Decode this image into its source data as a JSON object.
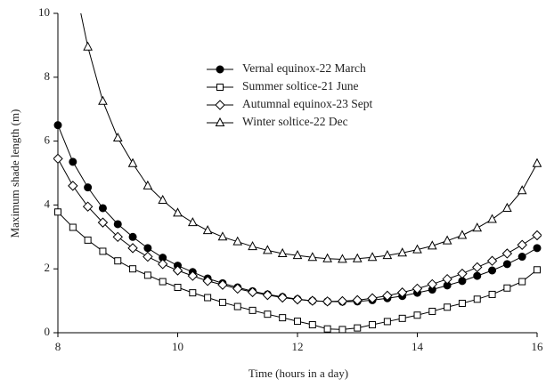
{
  "chart_data": {
    "type": "line",
    "x_label": "Time (hours in a day)",
    "y_label": "Maximum shade length (m)",
    "x": [
      8,
      8.25,
      8.5,
      8.75,
      9,
      9.25,
      9.5,
      9.75,
      10,
      10.25,
      10.5,
      10.75,
      11,
      11.25,
      11.5,
      11.75,
      12,
      12.25,
      12.5,
      12.75,
      13,
      13.25,
      13.5,
      13.75,
      14,
      14.25,
      14.5,
      14.75,
      15,
      15.25,
      15.5,
      15.75,
      16
    ],
    "series": [
      {
        "name": "Vernal equinox-22 March",
        "color": "#000000",
        "marker": "circle",
        "values": [
          6.5,
          5.35,
          4.55,
          3.9,
          3.4,
          3.0,
          2.65,
          2.35,
          2.1,
          1.9,
          1.7,
          1.55,
          1.42,
          1.3,
          1.2,
          1.12,
          1.05,
          1.0,
          0.98,
          0.97,
          0.98,
          1.02,
          1.08,
          1.15,
          1.25,
          1.35,
          1.48,
          1.62,
          1.78,
          1.95,
          2.15,
          2.38,
          2.65
        ]
      },
      {
        "name": "Summer soltice-21 June",
        "color": "#000000",
        "marker": "square",
        "values": [
          3.78,
          3.3,
          2.9,
          2.55,
          2.25,
          2.0,
          1.8,
          1.6,
          1.42,
          1.25,
          1.1,
          0.95,
          0.82,
          0.7,
          0.58,
          0.47,
          0.36,
          0.25,
          0.12,
          0.1,
          0.15,
          0.25,
          0.35,
          0.45,
          0.55,
          0.67,
          0.8,
          0.92,
          1.05,
          1.2,
          1.4,
          1.6,
          1.97
        ]
      },
      {
        "name": "Autumnal equinox-23 Sept",
        "color": "#000000",
        "marker": "diamond",
        "values": [
          5.45,
          4.6,
          3.95,
          3.45,
          3.0,
          2.65,
          2.38,
          2.15,
          1.95,
          1.78,
          1.62,
          1.5,
          1.38,
          1.27,
          1.18,
          1.1,
          1.04,
          1.0,
          0.98,
          0.99,
          1.02,
          1.08,
          1.16,
          1.26,
          1.38,
          1.52,
          1.68,
          1.85,
          2.05,
          2.25,
          2.48,
          2.75,
          3.05
        ]
      },
      {
        "name": "Winter soltice-22 Dec",
        "color": "#000000",
        "marker": "triangle",
        "values": [
          null,
          11.2,
          8.95,
          7.25,
          6.1,
          5.3,
          4.6,
          4.15,
          3.75,
          3.45,
          3.2,
          3.0,
          2.85,
          2.7,
          2.58,
          2.48,
          2.42,
          2.36,
          2.32,
          2.3,
          2.32,
          2.36,
          2.42,
          2.5,
          2.6,
          2.72,
          2.88,
          3.05,
          3.28,
          3.55,
          3.9,
          4.45,
          5.3
        ]
      }
    ],
    "xlim": [
      8,
      16
    ],
    "xticks": [
      8,
      10,
      12,
      14,
      16
    ],
    "ylim": [
      0,
      10
    ],
    "yticks": [
      0,
      2,
      4,
      6,
      8,
      10
    ],
    "legend": "top"
  }
}
